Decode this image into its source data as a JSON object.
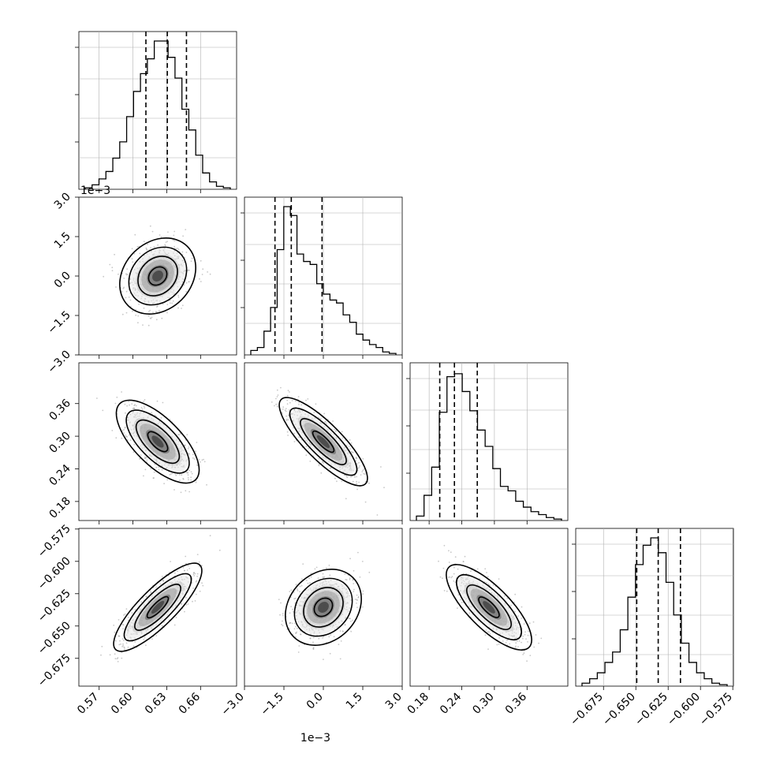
{
  "chart_data": {
    "type": "corner",
    "parameters": [
      {
        "name": "",
        "ticks": [
          "0.57",
          "0.60",
          "0.63",
          "0.66"
        ],
        "tick_values": [
          0.57,
          0.6,
          0.63,
          0.66
        ],
        "range": [
          0.552,
          0.692
        ],
        "quantiles": [
          0.6115,
          0.6305,
          0.6475
        ],
        "offset_label": ""
      },
      {
        "name": "",
        "ticks": [
          "−3.0",
          "−1.5",
          "0.0",
          "1.5",
          "3.0"
        ],
        "tick_values": [
          -3.0,
          -1.5,
          0.0,
          1.5,
          3.0
        ],
        "range": [
          -3.0,
          3.0
        ],
        "quantiles": [
          -1.84,
          -1.22,
          -0.05
        ],
        "offset_label": "1e−3"
      },
      {
        "name": "",
        "ticks": [
          "0.18",
          "0.24",
          "0.30",
          "0.36"
        ],
        "tick_values": [
          0.18,
          0.24,
          0.3,
          0.36
        ],
        "range": [
          0.145,
          0.435
        ],
        "quantiles": [
          0.1995,
          0.2265,
          0.2685
        ],
        "offset_label": ""
      },
      {
        "name": "",
        "ticks": [
          "−0.675",
          "−0.650",
          "−0.625",
          "−0.600",
          "−0.575"
        ],
        "tick_values": [
          -0.675,
          -0.65,
          -0.625,
          -0.6,
          -0.575
        ],
        "range": [
          -0.6965,
          -0.5745
        ],
        "quantiles": [
          -0.6493,
          -0.6327,
          -0.6155
        ],
        "offset_label": ""
      }
    ],
    "histograms": [
      [
        1,
        3,
        7,
        12,
        21,
        32,
        49,
        66,
        78,
        88,
        100,
        100,
        89,
        75,
        54,
        40,
        23,
        11,
        5,
        2,
        1
      ],
      [
        3,
        5,
        16,
        32,
        71,
        100,
        94,
        68,
        63,
        61,
        48,
        41,
        37,
        35,
        27,
        22,
        14,
        10,
        7,
        5,
        2,
        1
      ],
      [
        3,
        17,
        36,
        73,
        97,
        99,
        87,
        74,
        61,
        50,
        35,
        23,
        20,
        13,
        9,
        6,
        4,
        2,
        1
      ],
      [
        2,
        5,
        9,
        16,
        23,
        38,
        60,
        82,
        95,
        100,
        90,
        70,
        48,
        29,
        16,
        9,
        5,
        2,
        1
      ]
    ],
    "correlations": {
      "1-0": 0.15,
      "2-0": -0.55,
      "2-1": -0.75,
      "3-0": 0.75,
      "3-1": 0.15,
      "3-2": -0.65
    },
    "colors": {
      "axis": "#000000",
      "grid": "#b0b0b0",
      "points": "#9a9a9a",
      "contour": "#000000"
    }
  }
}
